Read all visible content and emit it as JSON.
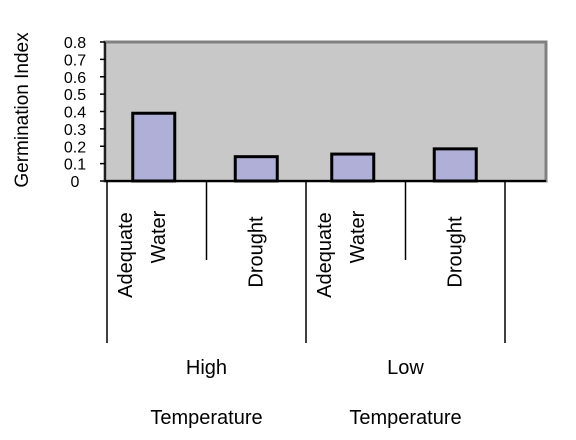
{
  "chart_data": {
    "type": "bar",
    "ylabel": "Germination Index",
    "ylim": [
      0,
      0.8
    ],
    "yticks": [
      "0.8",
      "0.7",
      "0.6",
      "0.5",
      "0.4",
      "0.3",
      "0.2",
      "0.1",
      "0"
    ],
    "plot_background": "#c8c8c8",
    "bar_color": "#afafd7",
    "categories": [
      {
        "lines": [
          "Adequate",
          "Water"
        ],
        "value": 0.39,
        "group": "High Temperature"
      },
      {
        "lines": [
          "Drought"
        ],
        "value": 0.14,
        "group": "High Temperature"
      },
      {
        "lines": [
          "Adequate",
          "Water"
        ],
        "value": 0.155,
        "group": "Low Temperature"
      },
      {
        "lines": [
          "Drought"
        ],
        "value": 0.185,
        "group": "Low Temperature"
      }
    ],
    "groups": [
      {
        "lines": [
          "High",
          "Temperature"
        ]
      },
      {
        "lines": [
          "Low",
          "Temperature"
        ]
      }
    ]
  }
}
